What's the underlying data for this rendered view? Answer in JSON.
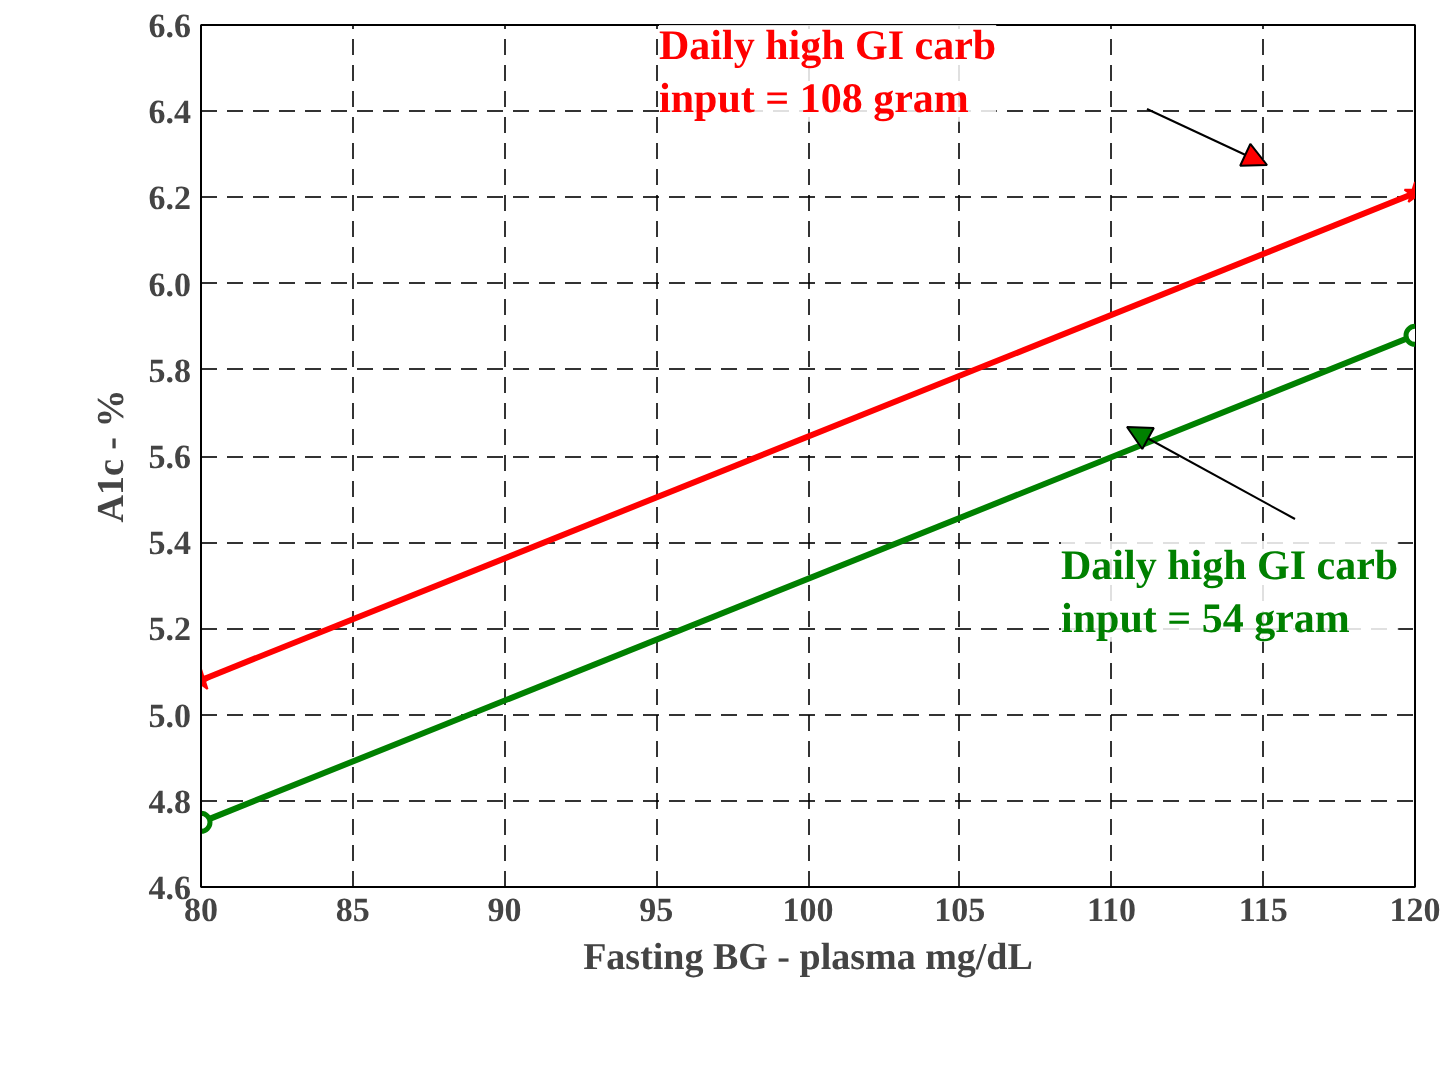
{
  "chart_data": {
    "type": "line",
    "xlabel": "Fasting BG - plasma mg/dL",
    "ylabel": "A1c - %",
    "x": [
      80,
      120
    ],
    "series": [
      {
        "color": "#ff0000",
        "values": [
          5.08,
          6.21
        ],
        "marker": "star"
      },
      {
        "color": "#008000",
        "values": [
          4.75,
          5.88
        ],
        "marker": "circle"
      }
    ],
    "annotations": [
      "Daily high GI carb\ninput = 108 gram",
      "Daily high GI carb\ninput = 54 gram"
    ],
    "xlim": [
      80,
      120
    ],
    "ylim": [
      4.6,
      6.6
    ],
    "xticks": [
      80,
      85,
      90,
      95,
      100,
      105,
      110,
      115,
      120
    ],
    "yticks": [
      {
        "value": 4.6,
        "label": "4.6"
      },
      {
        "value": 4.8,
        "label": "4.8"
      },
      {
        "value": 5.0,
        "label": "5.0"
      },
      {
        "value": 5.2,
        "label": "5.2"
      },
      {
        "value": 5.4,
        "label": "5.4"
      },
      {
        "value": 5.6,
        "label": "5.6"
      },
      {
        "value": 5.8,
        "label": "5.8"
      },
      {
        "value": 6.0,
        "label": "6.0"
      },
      {
        "value": 6.2,
        "label": "6.2"
      },
      {
        "value": 6.4,
        "label": "6.4"
      },
      {
        "value": 6.6,
        "label": "6.6"
      }
    ],
    "grid": true,
    "line_style": "solid"
  }
}
